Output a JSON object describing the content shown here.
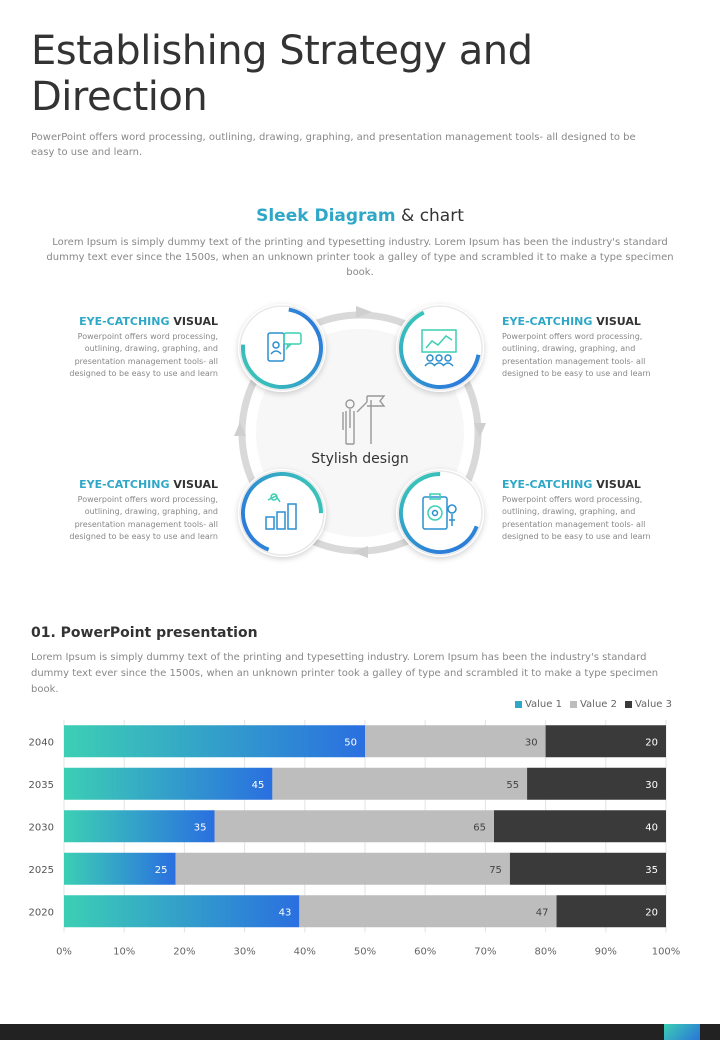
{
  "page": {
    "title": "Establishing Strategy and Direction",
    "intro": "PowerPoint offers word processing, outlining, drawing, graphing, and presentation management tools- all designed to be easy to use and learn."
  },
  "diagram": {
    "heading_accent": "Sleek Diagram",
    "heading_rest": " & chart",
    "description": "Lorem Ipsum is simply dummy text of the printing and typesetting industry. Lorem Ipsum has been the industry's standard dummy text ever since the 1500s, when an unknown printer took a galley of type and scrambled it to make a type specimen book.",
    "center_label": "Stylish design",
    "center_icon": "person-flag-icon",
    "callouts": [
      {
        "accent": "EYE-CATCHING",
        "title": "VISUAL",
        "text": "Powerpoint offers word processing, outlining, drawing, graphing, and presentation management tools- all designed to be easy to use and learn",
        "icon": "phone-chat-icon"
      },
      {
        "accent": "EYE-CATCHING",
        "title": "VISUAL",
        "text": "Powerpoint offers word processing, outlining, drawing, graphing, and presentation management tools- all designed to be easy to use and learn",
        "icon": "presentation-board-icon"
      },
      {
        "accent": "EYE-CATCHING",
        "title": "VISUAL",
        "text": "Powerpoint offers word processing, outlining, drawing, graphing, and presentation management tools- all designed to be easy to use and learn",
        "icon": "growth-chart-icon"
      },
      {
        "accent": "EYE-CATCHING",
        "title": "VISUAL",
        "text": "Powerpoint offers word processing, outlining, drawing, graphing, and presentation management tools- all designed to be easy to use and learn",
        "icon": "clipboard-target-icon"
      }
    ]
  },
  "chart_section": {
    "title": "01. PowerPoint presentation",
    "description": "Lorem Ipsum is simply dummy text of the printing and typesetting industry. Lorem Ipsum has been the industry's standard dummy text ever since the 1500s, when an unknown printer took a galley of type and scrambled it to make a type specimen book."
  },
  "chart_data": {
    "type": "bar",
    "orientation": "horizontal",
    "stacking": "percent",
    "categories": [
      "2040",
      "2035",
      "2030",
      "2025",
      "2020"
    ],
    "series": [
      {
        "name": "Value  1",
        "values": [
          50,
          45,
          35,
          25,
          43
        ],
        "color": "#2fa8c8"
      },
      {
        "name": "Value  2",
        "values": [
          30,
          55,
          65,
          75,
          47
        ],
        "color": "#bdbdbd"
      },
      {
        "name": "Value 3",
        "values": [
          20,
          30,
          40,
          35,
          20
        ],
        "color": "#3a3a3a"
      }
    ],
    "xticks": [
      "0%",
      "10%",
      "20%",
      "30%",
      "40%",
      "50%",
      "60%",
      "70%",
      "80%",
      "90%",
      "100%"
    ],
    "xlim": [
      0,
      100
    ],
    "grid": true,
    "legend": "top-right",
    "colors": {
      "gradient_start": "#3ccfb4",
      "gradient_end": "#2a6fe0"
    }
  },
  "footer": {
    "colors": {
      "bar": "#222222"
    }
  }
}
